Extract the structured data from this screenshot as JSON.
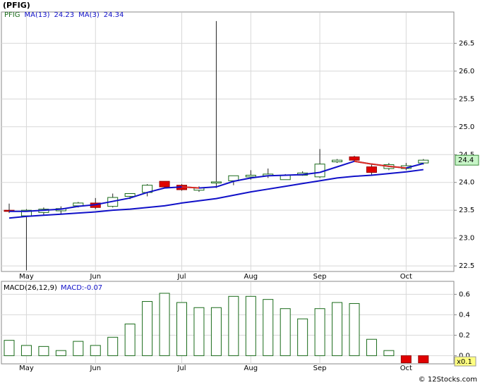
{
  "page_title": "(PFIG)",
  "footer": "© 12Stocks.com",
  "chart_data": [
    {
      "type": "candlestick",
      "categories": [
        null,
        "May",
        null,
        null,
        null,
        "Jun",
        null,
        null,
        null,
        null,
        "Jul",
        null,
        null,
        null,
        "Aug",
        null,
        null,
        null,
        "Sep",
        null,
        null,
        null,
        null,
        "Oct",
        null
      ],
      "name": "PFIG",
      "open": [
        23.5,
        23.4,
        23.46,
        23.49,
        23.58,
        23.63,
        23.57,
        23.75,
        23.82,
        24.02,
        23.95,
        23.86,
        23.99,
        24.03,
        24.1,
        24.12,
        24.05,
        24.13,
        24.1,
        24.37,
        24.46,
        24.28,
        24.25,
        24.25,
        24.35
      ],
      "high": [
        23.62,
        23.52,
        23.55,
        23.57,
        23.65,
        23.72,
        23.8,
        23.8,
        23.97,
        24.02,
        23.97,
        23.93,
        26.9,
        24.12,
        24.22,
        24.25,
        24.15,
        24.2,
        24.6,
        24.42,
        24.48,
        24.32,
        24.35,
        24.35,
        24.42
      ],
      "low": [
        23.45,
        22.42,
        23.42,
        23.42,
        23.55,
        23.52,
        23.55,
        23.7,
        23.75,
        23.9,
        23.85,
        23.83,
        23.9,
        23.95,
        24.05,
        24.08,
        24.05,
        24.12,
        24.08,
        24.35,
        24.38,
        24.13,
        24.22,
        24.22,
        24.32
      ],
      "close": [
        23.48,
        23.5,
        23.52,
        23.53,
        23.63,
        23.55,
        23.73,
        23.8,
        23.95,
        23.92,
        23.87,
        23.9,
        24.01,
        24.12,
        24.13,
        24.15,
        24.13,
        24.17,
        24.33,
        24.4,
        24.4,
        24.18,
        24.32,
        24.3,
        24.4
      ],
      "up_color": "#1a6b1a",
      "down_color": "#e00000",
      "series": [
        {
          "name": "MA(13)",
          "color": "#1010c8",
          "values": [
            23.36,
            23.39,
            23.41,
            23.43,
            23.45,
            23.47,
            23.5,
            23.52,
            23.55,
            23.58,
            23.63,
            23.67,
            23.71,
            23.77,
            23.83,
            23.88,
            23.93,
            23.98,
            24.03,
            24.08,
            24.11,
            24.13,
            24.16,
            24.19,
            24.23
          ]
        },
        {
          "name": "MA(3)",
          "color": "#1010c8",
          "falling_color": "#e03020",
          "values": [
            23.48,
            23.48,
            23.5,
            23.52,
            23.57,
            23.6,
            23.66,
            23.72,
            23.82,
            23.9,
            23.92,
            23.9,
            23.92,
            24.02,
            24.08,
            24.12,
            24.13,
            24.14,
            24.18,
            24.28,
            24.38,
            24.33,
            24.29,
            24.26,
            24.34
          ]
        }
      ],
      "ylim": [
        22.4,
        27.05
      ],
      "yticks": [
        22.5,
        {
          "value": 23,
          "label": "23.0"
        },
        23.5,
        {
          "value": 24,
          "label": "24.0"
        },
        24.5,
        {
          "value": 25,
          "label": "25.0"
        },
        25.5,
        {
          "value": 26,
          "label": "26.0"
        },
        26.5
      ],
      "grid": true
    },
    {
      "type": "bar",
      "name": "MACD(26,12,9)",
      "macd_label": "MACD:-0.07",
      "scale_note": "x0.1",
      "categories": [
        null,
        "May",
        null,
        null,
        null,
        "Jun",
        null,
        null,
        null,
        null,
        "Jul",
        null,
        null,
        null,
        "Aug",
        null,
        null,
        null,
        "Sep",
        null,
        null,
        null,
        null,
        "Oct",
        null
      ],
      "values": [
        0.15,
        0.1,
        0.09,
        0.05,
        0.14,
        0.1,
        0.18,
        0.31,
        0.53,
        0.61,
        0.52,
        0.47,
        0.47,
        0.58,
        0.58,
        0.55,
        0.46,
        0.36,
        0.46,
        0.52,
        0.51,
        0.16,
        0.05,
        -0.07,
        -0.07
      ],
      "up_color": "#1a6b1a",
      "down_color": "#e00000",
      "ylim": [
        -0.08,
        0.72
      ],
      "yticks": [
        {
          "value": 0,
          "label": "0.0"
        },
        0.2,
        0.4,
        0.6
      ],
      "grid": true
    }
  ]
}
